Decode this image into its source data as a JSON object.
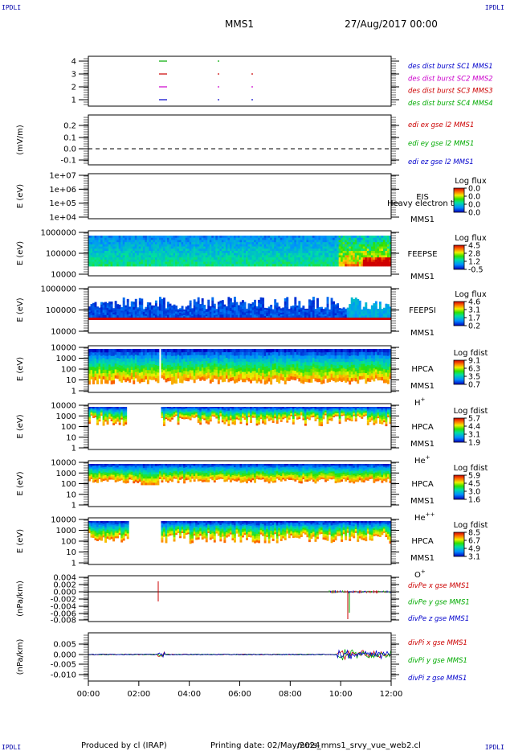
{
  "header": {
    "corner_left": "IPDLI",
    "corner_right": "IPDLI",
    "spacecraft": "MMS1",
    "date": "27/Aug/2017 00:00"
  },
  "footer": {
    "corner_left": "IPDLI",
    "corner_right": "IPDLI",
    "produced": "Produced by cl (IRAP)",
    "printing": "Printing date: 02/May/2024",
    "script": "mms_mms1_srvy_vue_web2.cl"
  },
  "time_axis": [
    "00:00",
    "02:00",
    "04:00",
    "06:00",
    "08:00",
    "10:00",
    "12:00"
  ],
  "chart_data": [
    {
      "type": "line",
      "id": "burst",
      "ylabel": "",
      "yticks": [
        "4",
        "3",
        "2",
        "1"
      ],
      "legend": [
        {
          "label": "des dist burst SC1 MMS1",
          "color": "#0000cc"
        },
        {
          "label": "des dist burst SC2 MMS2",
          "color": "#cc00cc"
        },
        {
          "label": "des dist burst SC3 MMS3",
          "color": "#cc0000"
        },
        {
          "label": "des dist burst SC4 MMS4",
          "color": "#00aa00"
        }
      ]
    },
    {
      "type": "line",
      "id": "edi",
      "ylabel": "(mV/m)",
      "yticks": [
        "0.2",
        "0.1",
        "0.0",
        "-0.1"
      ],
      "ylim": [
        -0.1,
        0.25
      ],
      "legend": [
        {
          "label": "edi ex gse l2 MMS1",
          "color": "#cc0000"
        },
        {
          "label": "edi ey gse l2 MMS1",
          "color": "#00aa00"
        },
        {
          "label": "edi ez gse l2 MMS1",
          "color": "#0000cc"
        }
      ]
    },
    {
      "type": "heatmap",
      "id": "eis",
      "ylabel": "E (eV)",
      "yticks": [
        "1e+07",
        "1e+06",
        "1e+05",
        "1e+04"
      ],
      "inst": "EIS",
      "inst_extra": "Heavy electron to",
      "sc": "MMS1",
      "cb_title": "Log flux",
      "cb_ticks": [
        "0.0",
        "0.0",
        "0.0",
        "0.0"
      ]
    },
    {
      "type": "heatmap",
      "id": "feepse",
      "ylabel": "E (eV)",
      "yticks": [
        "1000000",
        "100000",
        "10000"
      ],
      "inst": "FEEPSE",
      "sc": "MMS1",
      "cb_title": "Log flux",
      "cb_ticks": [
        "4.5",
        "2.8",
        "1.2",
        "-0.5"
      ]
    },
    {
      "type": "heatmap",
      "id": "feepsi",
      "ylabel": "E (eV)",
      "yticks": [
        "1000000",
        "100000",
        "10000"
      ],
      "inst": "FEEPSI",
      "sc": "MMS1",
      "cb_title": "Log flux",
      "cb_ticks": [
        "4.6",
        "3.1",
        "1.7",
        "0.2"
      ]
    },
    {
      "type": "heatmap",
      "id": "hpca_h",
      "ylabel": "E (eV)",
      "yticks": [
        "10000",
        "1000",
        "100",
        "10",
        "1"
      ],
      "inst": "HPCA",
      "sc": "MMS1",
      "ion": "H",
      "ion_charge": "+",
      "cb_title": "Log fdist",
      "cb_ticks": [
        "9.1",
        "6.3",
        "3.5",
        "0.7"
      ]
    },
    {
      "type": "heatmap",
      "id": "hpca_he",
      "ylabel": "E (eV)",
      "yticks": [
        "10000",
        "1000",
        "100",
        "10",
        "1"
      ],
      "inst": "HPCA",
      "sc": "MMS1",
      "ion": "He",
      "ion_charge": "+",
      "cb_title": "Log fdist",
      "cb_ticks": [
        "5.7",
        "4.4",
        "3.1",
        "1.9"
      ]
    },
    {
      "type": "heatmap",
      "id": "hpca_hepp",
      "ylabel": "E (eV)",
      "yticks": [
        "10000",
        "1000",
        "100",
        "10",
        "1"
      ],
      "inst": "HPCA",
      "sc": "MMS1",
      "ion": "He",
      "ion_charge": "++",
      "cb_title": "Log fdist",
      "cb_ticks": [
        "5.9",
        "4.5",
        "3.0",
        "1.6"
      ]
    },
    {
      "type": "heatmap",
      "id": "hpca_o",
      "ylabel": "E (eV)",
      "yticks": [
        "10000",
        "1000",
        "100",
        "10",
        "1"
      ],
      "inst": "HPCA",
      "sc": "MMS1",
      "ion": "O",
      "ion_charge": "+",
      "cb_title": "Log fdist",
      "cb_ticks": [
        "8.5",
        "6.7",
        "4.9",
        "3.1"
      ]
    },
    {
      "type": "line",
      "id": "divpe",
      "ylabel": "(nPa/km)",
      "yticks": [
        "0.004",
        "0.002",
        "0.000",
        "-0.002",
        "-0.004",
        "-0.006",
        "-0.008"
      ],
      "ylim": [
        -0.008,
        0.004
      ],
      "legend": [
        {
          "label": "divPe x gse MMS1",
          "color": "#cc0000"
        },
        {
          "label": "divPe y gse MMS1",
          "color": "#00aa00"
        },
        {
          "label": "divPe z gse MMS1",
          "color": "#0000cc"
        }
      ]
    },
    {
      "type": "line",
      "id": "divpi",
      "ylabel": "(nPa/km)",
      "yticks": [
        "0.005",
        "0.000",
        "-0.005",
        "-0.010"
      ],
      "ylim": [
        -0.012,
        0.008
      ],
      "legend": [
        {
          "label": "divPi x gse MMS1",
          "color": "#cc0000"
        },
        {
          "label": "divPi y gse MMS1",
          "color": "#00aa00"
        },
        {
          "label": "divPi z gse MMS1",
          "color": "#0000cc"
        }
      ]
    }
  ]
}
